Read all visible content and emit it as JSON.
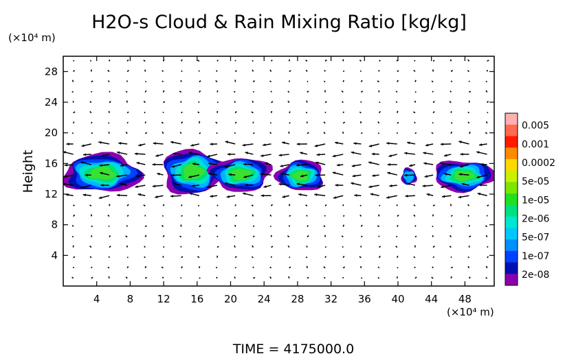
{
  "chart_data": {
    "type": "heatmap",
    "title": "H2O-s Cloud & Rain Mixing Ratio [kg/kg]",
    "xlabel": "",
    "ylabel": "Height",
    "x_unit": "(×10⁴ m)",
    "y_unit": "(×10⁴ m)",
    "xlim": [
      0,
      51.5
    ],
    "ylim": [
      0,
      30
    ],
    "x_ticks": [
      "4",
      "8",
      "12",
      "16",
      "20",
      "24",
      "28",
      "32",
      "36",
      "40",
      "44",
      "48"
    ],
    "y_ticks": [
      "4",
      "8",
      "12",
      "16",
      "20",
      "24",
      "28"
    ],
    "colorbar": {
      "labels": [
        "0.005",
        "0.001",
        "0.0002",
        "5e-05",
        "1e-05",
        "2e-06",
        "5e-07",
        "1e-07",
        "2e-08"
      ],
      "colors": [
        "#ffb0b0",
        "#ff6a50",
        "#ff1a00",
        "#ff8a00",
        "#ffd800",
        "#c8f000",
        "#7ce600",
        "#20e020",
        "#00e080",
        "#00e8d0",
        "#00c8ff",
        "#0090ff",
        "#0040ff",
        "#0010b0",
        "#8a00b0"
      ]
    },
    "cloud_regions": [
      {
        "x0": 0,
        "x1": 9.3,
        "y0": 12.2,
        "y1": 17.2,
        "peak": "1e-05"
      },
      {
        "x0": 11.8,
        "x1": 19.2,
        "y0": 12.0,
        "y1": 17.8,
        "peak": "1e-05"
      },
      {
        "x0": 17.6,
        "x1": 24.8,
        "y0": 12.4,
        "y1": 16.8,
        "peak": "1e-05"
      },
      {
        "x0": 25.6,
        "x1": 31.2,
        "y0": 12.4,
        "y1": 16.4,
        "peak": "1e-05"
      },
      {
        "x0": 40.4,
        "x1": 42.2,
        "y0": 13.2,
        "y1": 15.4,
        "peak": "5e-07"
      },
      {
        "x0": 44.2,
        "x1": 51.5,
        "y0": 12.4,
        "y1": 16.4,
        "peak": "1e-05"
      }
    ],
    "wind_vectors": "shown",
    "footer": "TIME = 4175000.0"
  }
}
